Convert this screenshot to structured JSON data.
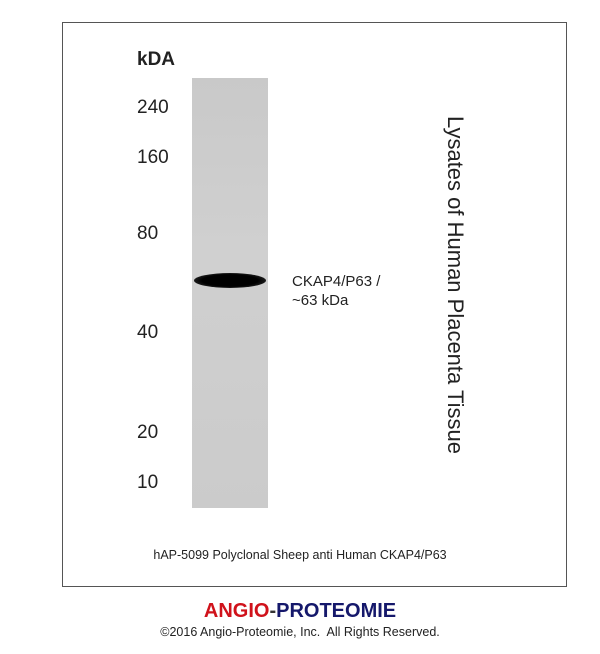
{
  "figure": {
    "unit_label": "kDA",
    "markers": [
      "240",
      "160",
      "80",
      "40",
      "20",
      "10"
    ],
    "band_label_line1": "CKAP4/P63 /",
    "band_label_line2": "~63 kDa",
    "sample_label": "Lysates of Human Placenta Tissue",
    "caption": "hAP-5099 Polyclonal Sheep anti Human CKAP4/P63"
  },
  "footer": {
    "logo_part1": "ANGIO",
    "logo_dash": "-",
    "logo_part2": "PROTEOMIE",
    "copyright": "©2016 Angio-Proteomie, Inc.  All Rights Reserved."
  },
  "colors": {
    "logo_red": "#d0121b",
    "logo_navy": "#15186b"
  }
}
